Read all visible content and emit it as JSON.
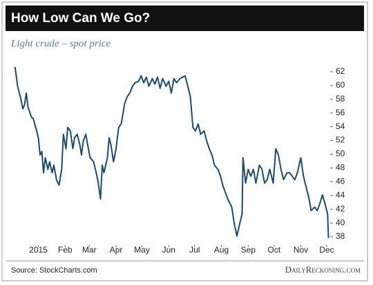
{
  "chart_data": {
    "type": "line",
    "title": "How Low Can We Go?",
    "subtitle": "Light crude – spot price",
    "source": "Source: StockCharts.com",
    "brand": "DailyReckoning.com",
    "color": "#1d4a68",
    "x": [
      -27,
      -24,
      -20,
      -18,
      -16,
      -14,
      -12,
      -8,
      -6,
      -3,
      0,
      2,
      4,
      6,
      8,
      11,
      13,
      16,
      18,
      21,
      24,
      27,
      29,
      32,
      34,
      37,
      40,
      42,
      45,
      48,
      50,
      52,
      55,
      57,
      60,
      64,
      67,
      69,
      72,
      74,
      76,
      80,
      82,
      84,
      87,
      90,
      93,
      96,
      100,
      103,
      106,
      109,
      112,
      116,
      119,
      122,
      125,
      128,
      132,
      135,
      138,
      141,
      144,
      148,
      151,
      154,
      157,
      160,
      164,
      167,
      170,
      173,
      176,
      179,
      182,
      185,
      188,
      192,
      195,
      198,
      201,
      204,
      208,
      211,
      214,
      217,
      220,
      224,
      227,
      230,
      233,
      236,
      237,
      240,
      243,
      246,
      249,
      252,
      256,
      259,
      262,
      265,
      268,
      272,
      275,
      278,
      281,
      284,
      288,
      291,
      294,
      297,
      300,
      304,
      307,
      310,
      313,
      316,
      320,
      323,
      326,
      329,
      332,
      335,
      336
    ],
    "values": [
      62.7,
      59.9,
      57.9,
      56.6,
      57.2,
      58.9,
      56.9,
      55.4,
      55.2,
      53.9,
      52.4,
      49.9,
      50.4,
      47.3,
      49.5,
      47.8,
      48.9,
      47.3,
      48.4,
      46.3,
      45.5,
      47.8,
      52.9,
      50.8,
      53.9,
      53.4,
      50.8,
      52.4,
      52.9,
      51.4,
      49.9,
      51.9,
      52.9,
      51.4,
      49.5,
      48.9,
      47.3,
      46.1,
      43.5,
      48.4,
      47.3,
      49.5,
      52.4,
      51.4,
      48.9,
      50.8,
      53.9,
      54.4,
      57.4,
      58.4,
      58.9,
      59.9,
      60.4,
      60.6,
      61.4,
      60.4,
      61.2,
      59.9,
      61.0,
      60.2,
      61.2,
      59.6,
      61.0,
      59.9,
      60.6,
      58.9,
      61.0,
      60.4,
      61.0,
      61.2,
      61.4,
      59.9,
      58.4,
      53.9,
      53.4,
      54.4,
      52.9,
      53.4,
      51.9,
      50.8,
      49.9,
      48.4,
      47.8,
      46.8,
      45.3,
      44.3,
      43.3,
      42.3,
      39.8,
      38.1,
      39.8,
      41.3,
      49.5,
      45.8,
      47.8,
      46.8,
      47.8,
      45.8,
      48.4,
      47.8,
      45.8,
      46.3,
      47.8,
      45.8,
      50.8,
      49.9,
      47.8,
      46.3,
      47.3,
      47.3,
      46.8,
      46.3,
      47.3,
      49.5,
      46.8,
      45.3,
      43.8,
      41.8,
      42.3,
      41.8,
      42.8,
      44.1,
      42.8,
      41.3,
      37.8
    ],
    "xlim": [
      -30,
      338
    ],
    "xticks": [
      {
        "value": 0,
        "label": "2015"
      },
      {
        "value": 31,
        "label": "Feb"
      },
      {
        "value": 59,
        "label": "Mar"
      },
      {
        "value": 90,
        "label": "Apr"
      },
      {
        "value": 120,
        "label": "May"
      },
      {
        "value": 151,
        "label": "Jun"
      },
      {
        "value": 181,
        "label": "Jul"
      },
      {
        "value": 212,
        "label": "Aug"
      },
      {
        "value": 243,
        "label": "Sep"
      },
      {
        "value": 273,
        "label": "Oct"
      },
      {
        "value": 304,
        "label": "Nov"
      },
      {
        "value": 334,
        "label": "Dec"
      }
    ],
    "ylim": [
      36.8,
      63.6
    ],
    "yticks": [
      38,
      40,
      42,
      44,
      46,
      48,
      50,
      52,
      54,
      56,
      58,
      60,
      62
    ]
  }
}
